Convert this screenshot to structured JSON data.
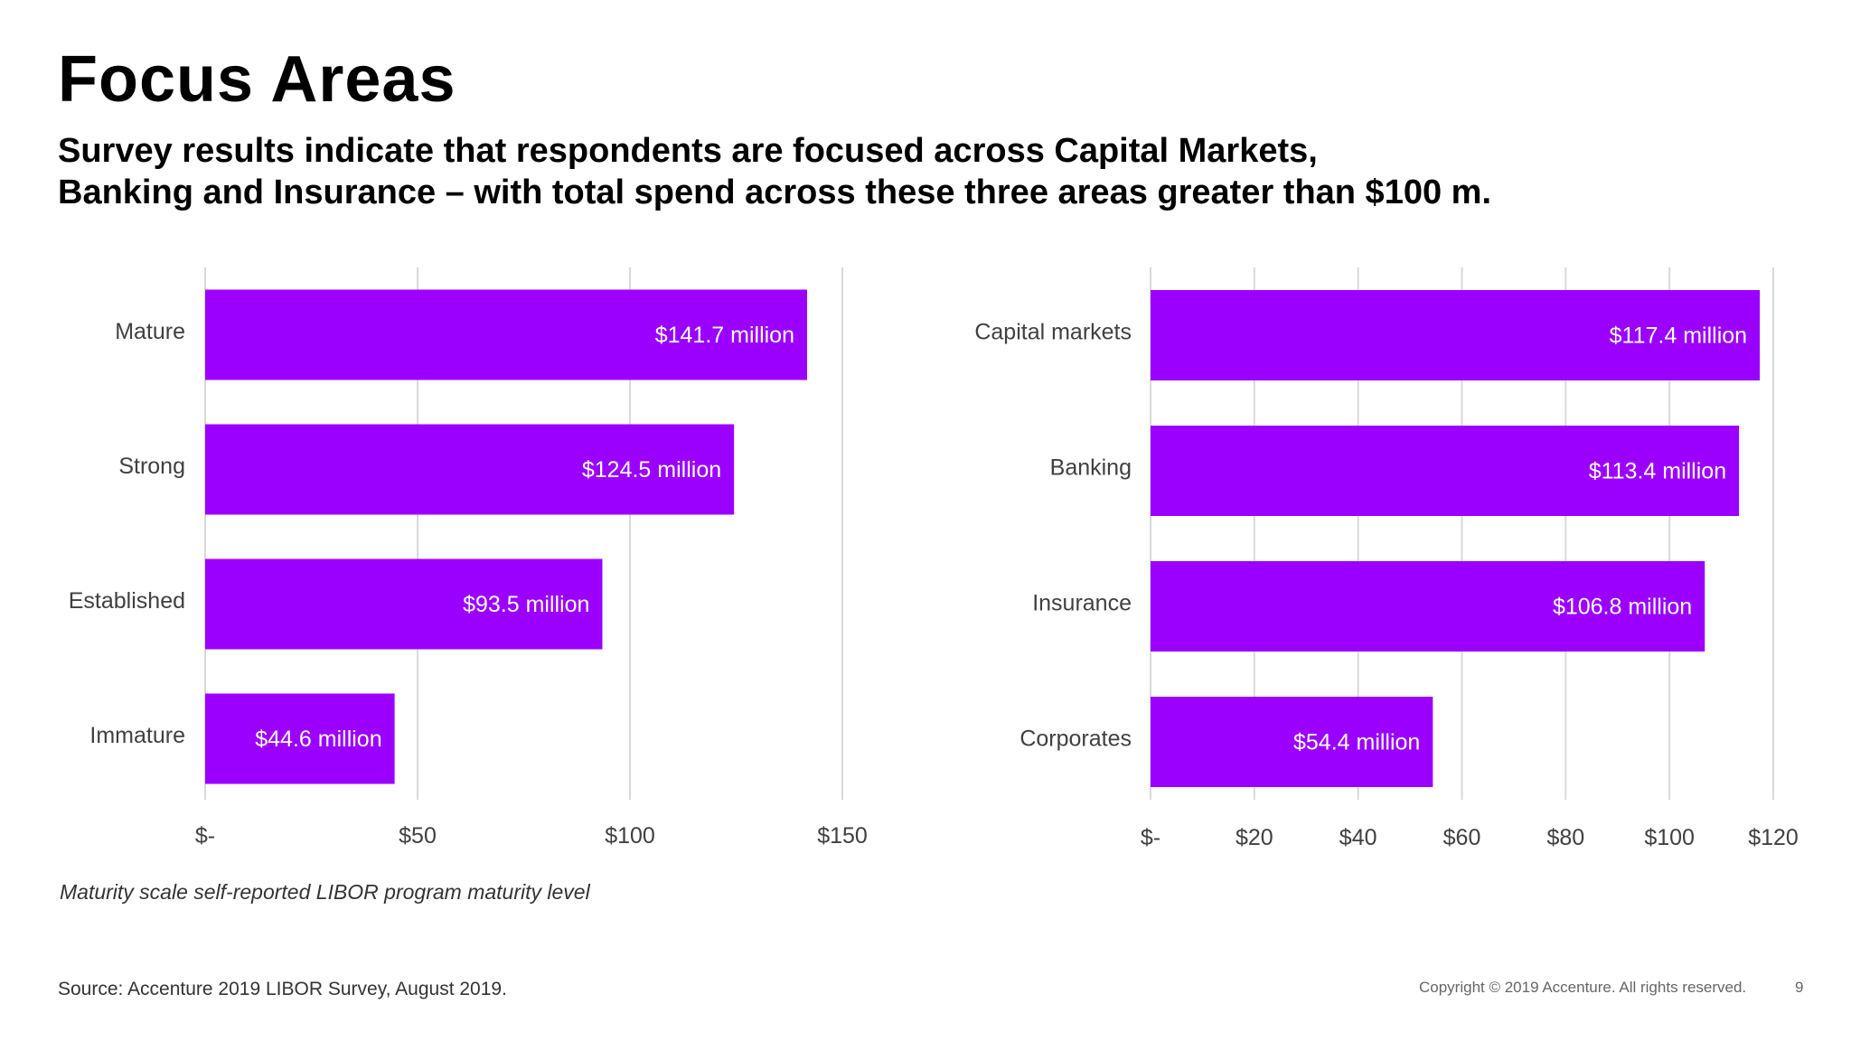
{
  "header": {
    "title": "Focus Areas",
    "subtitle_line1": "Survey results indicate that respondents are focused across Capital Markets,",
    "subtitle_line2": "Banking and Insurance – with total spend across these three areas greater than $100 m."
  },
  "colors": {
    "bar": "#9b00ff",
    "grid": "#d9d9d9",
    "text": "#404040"
  },
  "chart_data": [
    {
      "type": "bar",
      "orientation": "horizontal",
      "categories": [
        "Mature",
        "Strong",
        "Established",
        "Immature"
      ],
      "values": [
        141.7,
        124.5,
        93.5,
        44.6
      ],
      "data_labels": [
        "$141.7  million",
        "$124.5  million",
        "$93.5  million",
        "$44.6  million"
      ],
      "xlim": [
        0,
        150
      ],
      "x_ticks": [
        0,
        50,
        100,
        150
      ],
      "x_tick_labels": [
        "$-",
        "$50",
        "$100",
        "$150"
      ],
      "grid": true,
      "title": "",
      "xlabel": "",
      "ylabel": ""
    },
    {
      "type": "bar",
      "orientation": "horizontal",
      "categories": [
        "Capital markets",
        "Banking",
        "Insurance",
        "Corporates"
      ],
      "values": [
        117.4,
        113.4,
        106.8,
        54.4
      ],
      "data_labels": [
        "$117.4  million",
        "$113.4  million",
        "$106.8  million",
        "$54.4  million"
      ],
      "xlim": [
        0,
        120
      ],
      "x_ticks": [
        0,
        20,
        40,
        60,
        80,
        100,
        120
      ],
      "x_tick_labels": [
        "$-",
        "$20",
        "$40",
        "$60",
        "$80",
        "$100",
        "$120"
      ],
      "grid": true,
      "title": "",
      "xlabel": "",
      "ylabel": ""
    }
  ],
  "footnote": "Maturity scale self-reported LIBOR program maturity level",
  "footer": {
    "source": "Source: Accenture 2019 LIBOR Survey,  August 2019.",
    "copyright": "Copyright © 2019 Accenture. All rights reserved.",
    "page_number": "9"
  }
}
